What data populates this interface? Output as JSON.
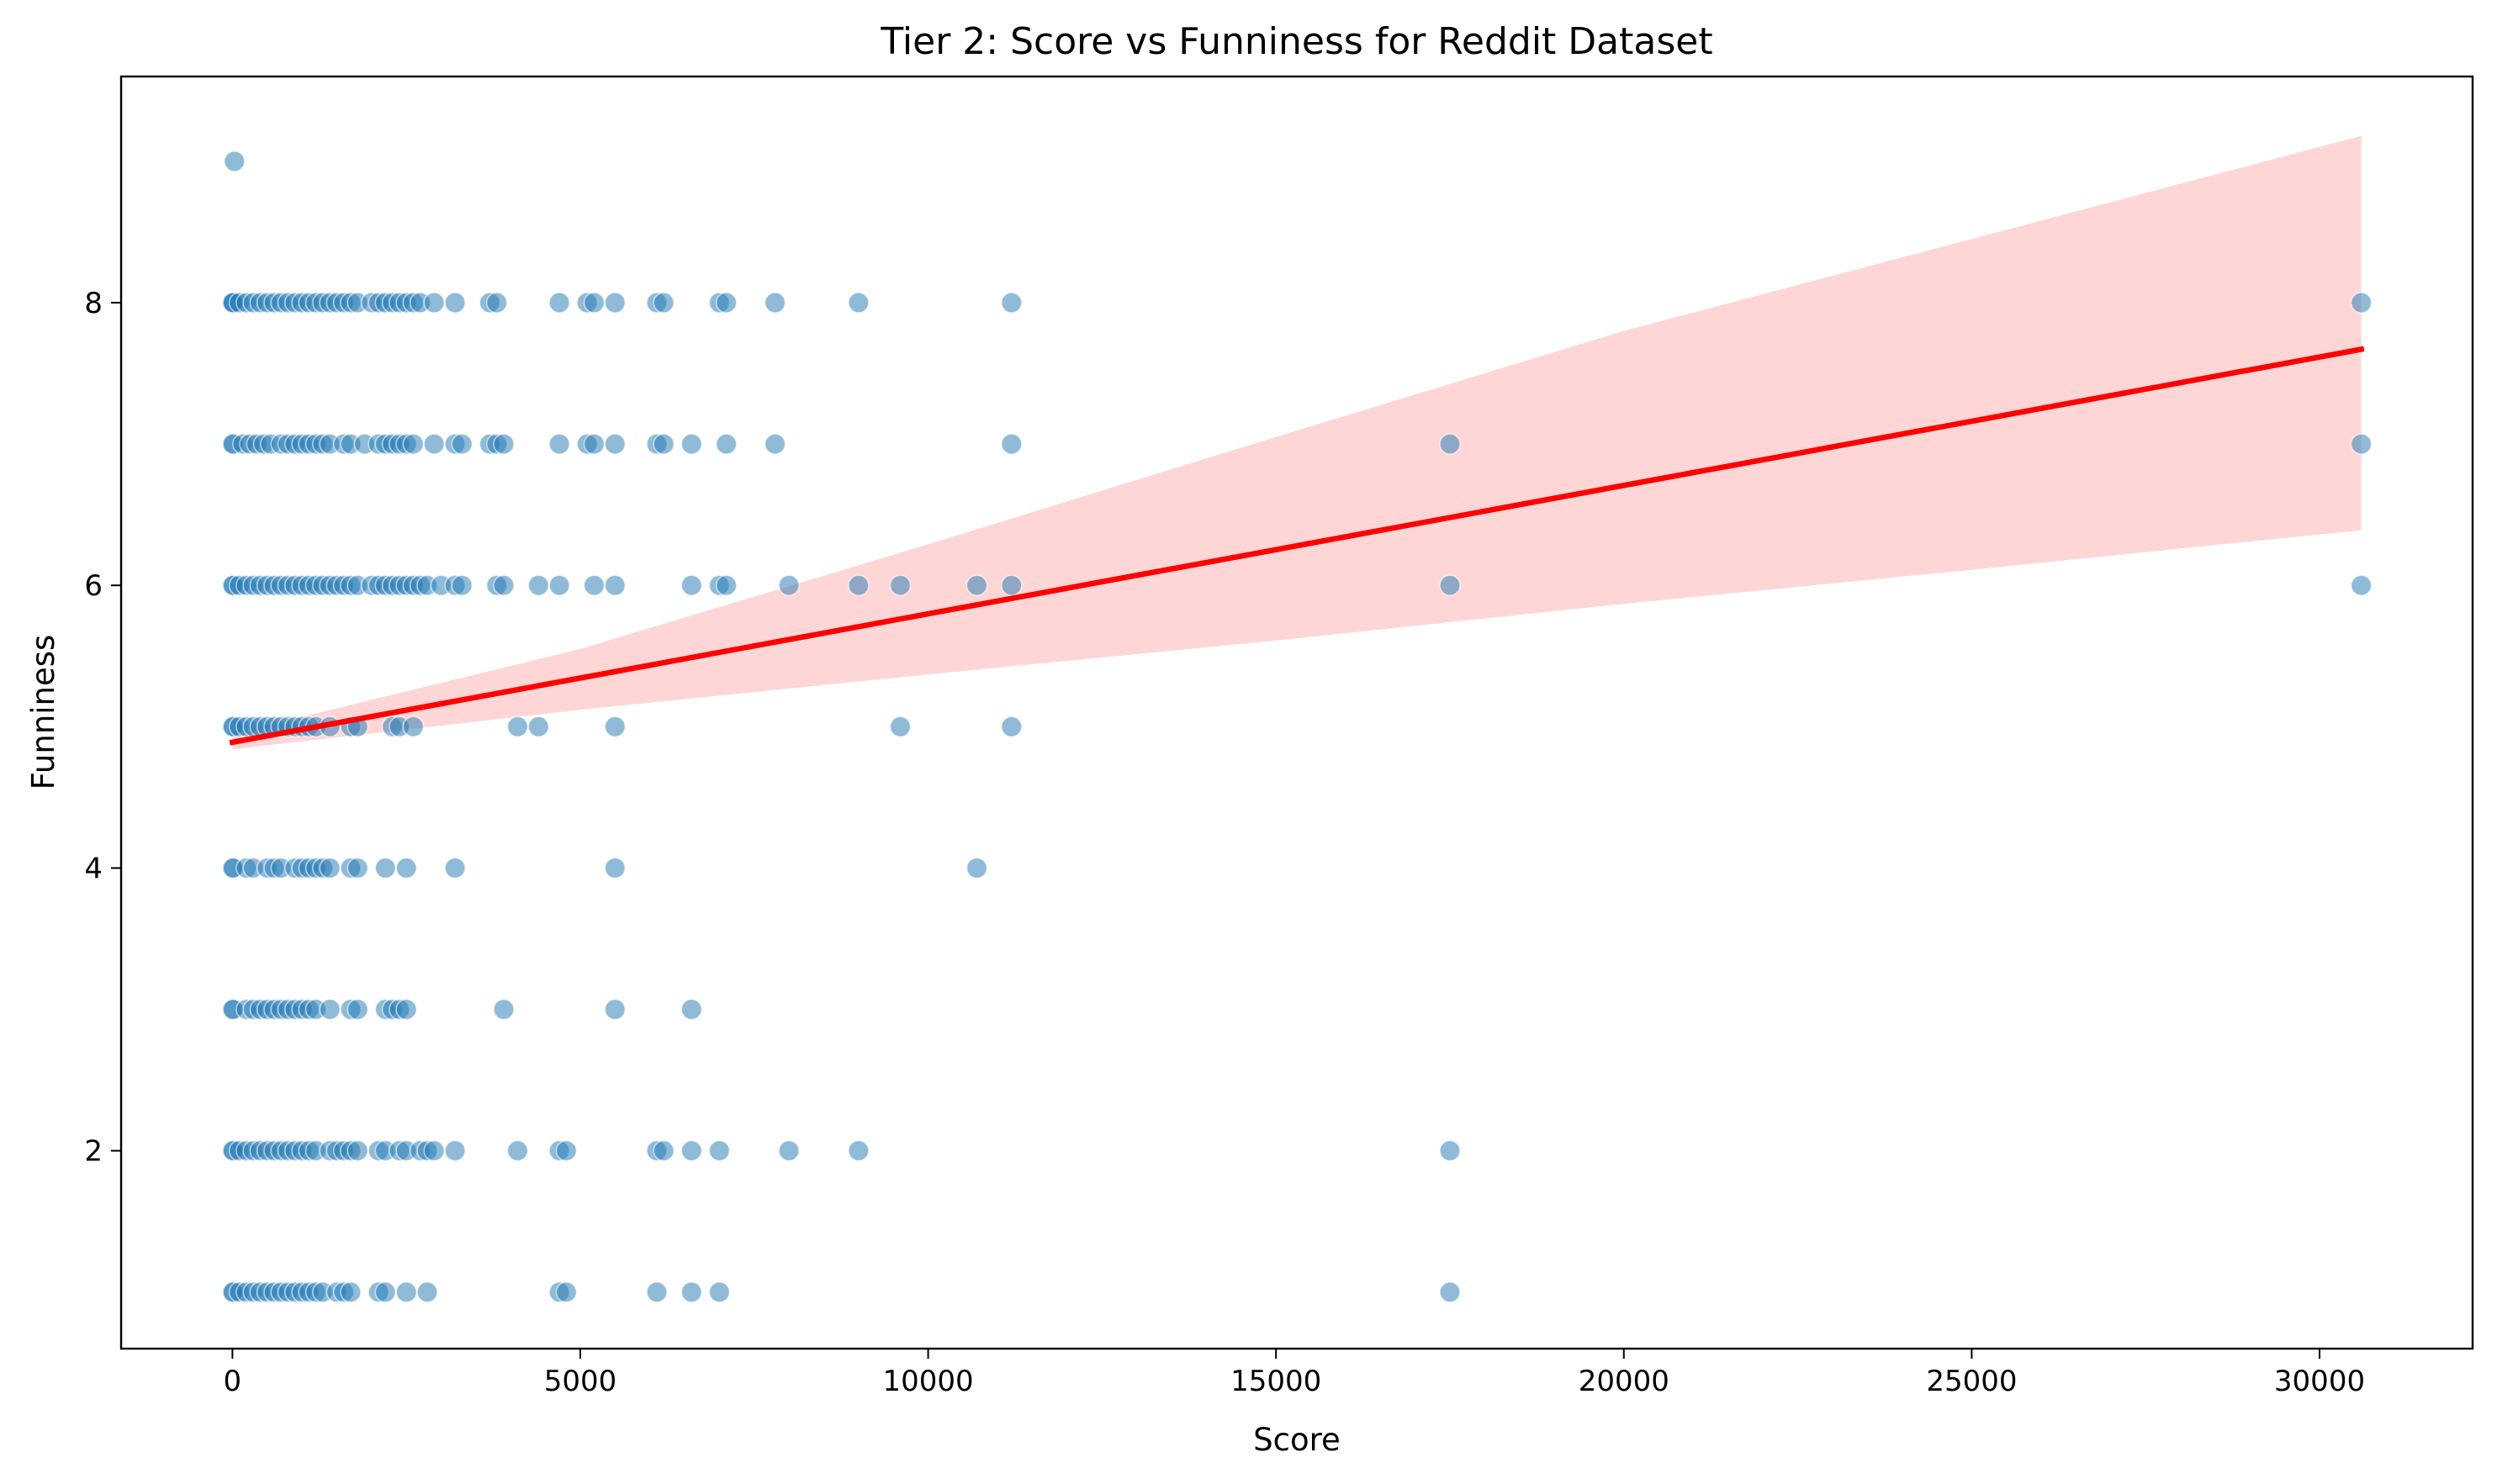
{
  "chart_data": {
    "type": "scatter",
    "title": "Tier 2: Score vs Funniness for Reddit Dataset",
    "xlabel": "Score",
    "ylabel": "Funniness",
    "xlim": [
      -1600,
      32200
    ],
    "ylim": [
      0.6,
      9.6
    ],
    "xticks": [
      0,
      5000,
      10000,
      15000,
      20000,
      25000,
      30000
    ],
    "yticks": [
      2,
      4,
      6,
      8
    ],
    "grid": false,
    "legend": "none",
    "colors": {
      "points": "#1f77b4",
      "line": "#ff0000",
      "band": "#ffd6d6"
    },
    "series": [
      {
        "kind": "points",
        "x": [
          0,
          0,
          0,
          0,
          0,
          0,
          0,
          0,
          0,
          30,
          10,
          100,
          200,
          300,
          400,
          500,
          600,
          700,
          800,
          900,
          1000,
          1100,
          1200,
          1300,
          1400,
          1500,
          1600,
          1700,
          1800,
          2000,
          2100,
          2200,
          2300,
          2400,
          2500,
          2600,
          2700,
          2900,
          3200,
          3700,
          3800,
          4700,
          5100,
          5200,
          5500,
          6100,
          6200,
          7000,
          7100,
          7800,
          9000,
          11200,
          30600,
          10,
          150,
          250,
          350,
          450,
          550,
          700,
          800,
          900,
          1000,
          1100,
          1200,
          1300,
          1400,
          1600,
          1700,
          1900,
          2100,
          2200,
          2300,
          2400,
          2500,
          2600,
          2900,
          3200,
          3300,
          3700,
          3800,
          3900,
          4700,
          5100,
          5200,
          5500,
          6100,
          6200,
          6600,
          7100,
          7800,
          11200,
          17500,
          30600,
          10,
          100,
          200,
          300,
          400,
          500,
          600,
          700,
          800,
          900,
          1000,
          1100,
          1200,
          1300,
          1400,
          1500,
          1600,
          1700,
          1800,
          2000,
          2100,
          2200,
          2300,
          2400,
          2500,
          2600,
          2700,
          2800,
          3000,
          3200,
          3300,
          3800,
          3900,
          4400,
          4700,
          5200,
          5500,
          6600,
          7000,
          7100,
          8000,
          9000,
          9600,
          10700,
          11200,
          17500,
          30600,
          10,
          100,
          200,
          300,
          400,
          500,
          600,
          700,
          800,
          900,
          1000,
          1100,
          1200,
          1400,
          1700,
          1800,
          2300,
          2400,
          2600,
          4100,
          4400,
          5500,
          9600,
          11200,
          10,
          200,
          300,
          500,
          600,
          700,
          900,
          1000,
          1100,
          1200,
          1300,
          1400,
          1700,
          1800,
          2200,
          2500,
          3200,
          5500,
          10700,
          10,
          200,
          300,
          400,
          500,
          600,
          700,
          800,
          900,
          1000,
          1100,
          1200,
          1400,
          1700,
          1800,
          2200,
          2300,
          2400,
          2500,
          3900,
          5500,
          6600,
          10,
          100,
          200,
          300,
          400,
          500,
          600,
          700,
          800,
          900,
          1000,
          1100,
          1200,
          1400,
          1500,
          1600,
          1700,
          1800,
          2100,
          2200,
          2400,
          2500,
          2700,
          2800,
          2900,
          3200,
          4100,
          4700,
          4800,
          6100,
          6200,
          6600,
          7000,
          8000,
          9000,
          17500,
          10,
          100,
          200,
          300,
          400,
          500,
          600,
          700,
          800,
          900,
          1000,
          1100,
          1200,
          1300,
          1500,
          1600,
          1700,
          2100,
          2200,
          2500,
          2800,
          4700,
          4800,
          6100,
          6600,
          7000,
          17500
        ],
        "y": [
          8,
          7,
          6,
          5,
          4,
          3,
          2,
          1,
          8,
          9,
          8,
          8,
          8,
          8,
          8,
          8,
          8,
          8,
          8,
          8,
          8,
          8,
          8,
          8,
          8,
          8,
          8,
          8,
          8,
          8,
          8,
          8,
          8,
          8,
          8,
          8,
          8,
          8,
          8,
          8,
          8,
          8,
          8,
          8,
          8,
          8,
          8,
          8,
          8,
          8,
          8,
          8,
          8,
          7,
          7,
          7,
          7,
          7,
          7,
          7,
          7,
          7,
          7,
          7,
          7,
          7,
          7,
          7,
          7,
          7,
          7,
          7,
          7,
          7,
          7,
          7,
          7,
          7,
          7,
          7,
          7,
          7,
          7,
          7,
          7,
          7,
          7,
          7,
          7,
          7,
          7,
          7,
          7,
          7,
          6,
          6,
          6,
          6,
          6,
          6,
          6,
          6,
          6,
          6,
          6,
          6,
          6,
          6,
          6,
          6,
          6,
          6,
          6,
          6,
          6,
          6,
          6,
          6,
          6,
          6,
          6,
          6,
          6,
          6,
          6,
          6,
          6,
          6,
          6,
          6,
          6,
          6,
          6,
          6,
          6,
          6,
          6,
          6,
          6,
          6,
          6,
          5,
          5,
          5,
          5,
          5,
          5,
          5,
          5,
          5,
          5,
          5,
          5,
          5,
          5,
          5,
          5,
          5,
          5,
          5,
          5,
          5,
          5,
          5,
          5,
          4,
          4,
          4,
          4,
          4,
          4,
          4,
          4,
          4,
          4,
          4,
          4,
          4,
          4,
          4,
          4,
          4,
          4,
          4,
          3,
          3,
          3,
          3,
          3,
          3,
          3,
          3,
          3,
          3,
          3,
          3,
          3,
          3,
          3,
          3,
          3,
          3,
          3,
          3,
          3,
          3,
          2,
          2,
          2,
          2,
          2,
          2,
          2,
          2,
          2,
          2,
          2,
          2,
          2,
          2,
          2,
          2,
          2,
          2,
          2,
          2,
          2,
          2,
          2,
          2,
          2,
          2,
          2,
          2,
          2,
          2,
          2,
          2,
          2,
          2,
          2,
          2,
          1,
          1,
          1,
          1,
          1,
          1,
          1,
          1,
          1,
          1,
          1,
          1,
          1,
          1,
          1,
          1,
          1,
          1,
          1,
          1,
          1,
          1,
          1,
          1,
          1,
          1,
          1
        ]
      },
      {
        "kind": "regression-line",
        "x": [
          0,
          30600
        ],
        "y": [
          4.89,
          7.67
        ]
      },
      {
        "kind": "confidence-band",
        "x": [
          0,
          5000,
          10000,
          15000,
          20000,
          25000,
          30600
        ],
        "lower": [
          4.84,
          5.12,
          5.37,
          5.61,
          5.87,
          6.11,
          6.39
        ],
        "upper": [
          4.95,
          5.55,
          6.29,
          7.05,
          7.8,
          8.45,
          9.18
        ]
      }
    ]
  }
}
